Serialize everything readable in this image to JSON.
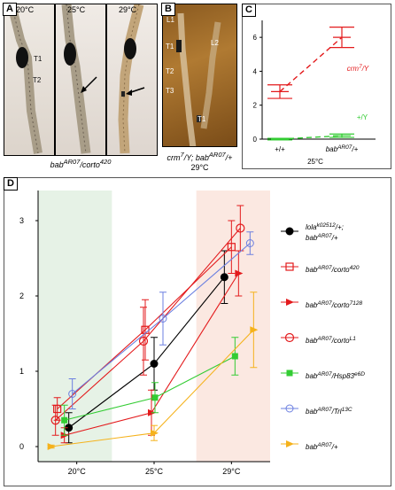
{
  "panel_a": {
    "label": "A",
    "temps": [
      "20°C",
      "25°C",
      "29°C"
    ],
    "labels": [
      "T1",
      "T2"
    ],
    "genotype_base": "bab",
    "genotype_sup1": "AR07",
    "genotype_mid": "/corto",
    "genotype_sup2": "420"
  },
  "panel_b": {
    "label": "B",
    "labels": [
      "L1",
      "L2",
      "T1",
      "T2",
      "T3",
      "T1"
    ],
    "caption_l1": "crm",
    "caption_l1_sup": "7",
    "caption_l1_rest": "/Y; bab",
    "caption_l1_sup2": "AR07",
    "caption_l1_end": "/+",
    "caption_l2": "29°C"
  },
  "panel_c": {
    "label": "C",
    "y_ticks": [
      "0",
      "2",
      "4",
      "6"
    ],
    "x_labels": [
      "+/+",
      "bab"
    ],
    "x_label2_sup": "AR07",
    "x_label2_end": "/+",
    "bottom_label": "25°C",
    "series_crm": "crm",
    "series_crm_sup": "7",
    "series_crm_end": "/Y",
    "series_wt": "+/Y"
  },
  "panel_d": {
    "label": "D",
    "y_ticks": [
      "0",
      "1",
      "2",
      "3"
    ],
    "x_labels": [
      "20°C",
      "25°C",
      "29°C"
    ],
    "legend": [
      {
        "base": "lola",
        "sup": "k02512",
        "mid": "/+;",
        "line2": "bab",
        "sup2": "AR07",
        "end2": "/+"
      },
      {
        "base": "bab",
        "sup": "AR07",
        "mid": "/corto",
        "sup3": "420"
      },
      {
        "base": "bab",
        "sup": "AR07",
        "mid": "/corto",
        "sup3": "7128"
      },
      {
        "base": "bab",
        "sup": "AR07",
        "mid": "/corto",
        "sup3": "L1"
      },
      {
        "base": "bab",
        "sup": "AR07",
        "mid": "/Hsp83",
        "sup3": "e6D"
      },
      {
        "base": "bab",
        "sup": "AR07",
        "mid": "/Trl",
        "sup3": "13C"
      },
      {
        "base": "bab",
        "sup": "AR07",
        "mid": "/+",
        "sup3": ""
      }
    ],
    "colors": {
      "lola": "#000000",
      "corto420": "#e31a1c",
      "corto7128": "#e31a1c",
      "cortoL1": "#e31a1c",
      "hsp83": "#33cc33",
      "trl": "#6b7fe0",
      "babplus": "#f5b21b",
      "band20": "#e6f2e6",
      "band29": "#fbe8e1"
    }
  },
  "chart_data": [
    {
      "type": "line",
      "panel": "C",
      "categories": [
        "+/+",
        "bab AR07/+"
      ],
      "xlabel": "25°C",
      "ylim": [
        0,
        7
      ],
      "series": [
        {
          "name": "crm7/Y",
          "values": [
            2.8,
            6.0
          ],
          "err": [
            0.4,
            0.6
          ]
        },
        {
          "name": "+/Y",
          "values": [
            0.0,
            0.2
          ],
          "err": [
            0.05,
            0.1
          ]
        }
      ]
    },
    {
      "type": "line",
      "panel": "D",
      "categories": [
        "20°C",
        "25°C",
        "29°C"
      ],
      "ylim": [
        -0.2,
        3.4
      ],
      "series": [
        {
          "name": "lolak02512/+; babAR07/+",
          "x": [
            0,
            1,
            2
          ],
          "values": [
            0.25,
            1.1,
            2.25
          ],
          "err": [
            0.2,
            0.35,
            0.35
          ]
        },
        {
          "name": "babAR07/corto420",
          "x": [
            0,
            1,
            2
          ],
          "values": [
            0.5,
            1.55,
            2.65
          ],
          "err": [
            0.15,
            0.4,
            0.35
          ]
        },
        {
          "name": "babAR07/corto7128",
          "x": [
            0,
            1,
            2
          ],
          "values": [
            0.15,
            0.45,
            2.3
          ],
          "err": [
            0.1,
            0.3,
            0.3
          ]
        },
        {
          "name": "babAR07/cortoL1",
          "x": [
            0,
            1,
            2
          ],
          "values": [
            0.35,
            1.4,
            2.9
          ],
          "err": [
            0.2,
            0.45,
            0.3
          ]
        },
        {
          "name": "babAR07/Hsp83e6D",
          "x": [
            0,
            1,
            2
          ],
          "values": [
            0.35,
            0.65,
            1.2
          ],
          "err": [
            0.2,
            0.2,
            0.25
          ]
        },
        {
          "name": "babAR07/Trl13C",
          "x": [
            0,
            1,
            2
          ],
          "values": [
            0.7,
            1.7,
            2.7
          ],
          "err": [
            0.2,
            0.35,
            0.15
          ]
        },
        {
          "name": "babAR07/+",
          "x": [
            0,
            1,
            2
          ],
          "values": [
            0.0,
            0.18,
            1.55
          ],
          "err": [
            0.02,
            0.1,
            0.5
          ]
        }
      ]
    }
  ]
}
